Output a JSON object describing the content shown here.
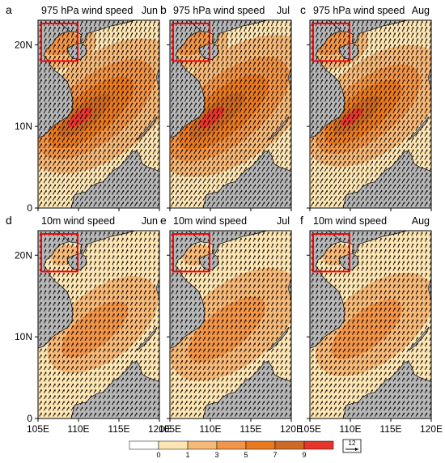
{
  "figure": {
    "panels": [
      {
        "label": "a",
        "variable": "975 hPa wind speed",
        "month": "Jun",
        "intensity": 1.0,
        "row": 0,
        "col": 0
      },
      {
        "label": "b",
        "variable": "975 hPa wind speed",
        "month": "Jul",
        "intensity": 1.05,
        "row": 0,
        "col": 1
      },
      {
        "label": "c",
        "variable": "975 hPa wind speed",
        "month": "Aug",
        "intensity": 0.9,
        "row": 0,
        "col": 2
      },
      {
        "label": "d",
        "variable": "10m wind speed",
        "month": "Jun",
        "intensity": 0.62,
        "row": 1,
        "col": 0
      },
      {
        "label": "e",
        "variable": "10m wind speed",
        "month": "Jul",
        "intensity": 0.72,
        "row": 1,
        "col": 1
      },
      {
        "label": "f",
        "variable": "10m wind speed",
        "month": "Aug",
        "intensity": 0.66,
        "row": 1,
        "col": 2
      }
    ],
    "x_ticks": [
      "105E",
      "110E",
      "115E",
      "120E"
    ],
    "y_ticks": [
      "20N",
      "10N",
      "0"
    ],
    "colorbar": {
      "levels": [
        "0",
        "1",
        "3",
        "5",
        "7",
        "9"
      ],
      "colors": [
        "#ffffff",
        "#fde6b4",
        "#f7b978",
        "#f29548",
        "#e97a1f",
        "#cf6a25",
        "#e8352b"
      ]
    },
    "reference_vector": {
      "label": "12"
    },
    "colors": {
      "land": "#b7b7b7",
      "box": "#ff0000",
      "arrow": "#000000"
    }
  }
}
